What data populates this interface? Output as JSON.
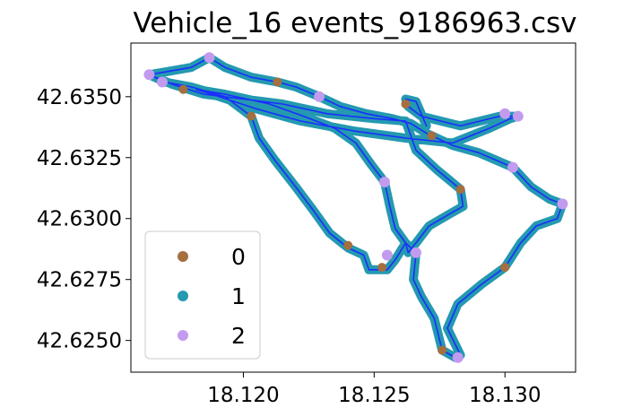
{
  "chart_data": {
    "type": "scatter",
    "title": "Vehicle_16 events_9186963.csv",
    "xlabel": "",
    "ylabel": "",
    "xlim": [
      18.1157,
      18.1327
    ],
    "ylim": [
      42.6237,
      42.6372
    ],
    "x_ticks": [
      18.12,
      18.125,
      18.13
    ],
    "x_tick_labels": [
      "18.120",
      "18.125",
      "18.130"
    ],
    "y_ticks": [
      42.625,
      42.6275,
      42.63,
      42.6325,
      42.635
    ],
    "y_tick_labels": [
      "42.6250",
      "42.6275",
      "42.6300",
      "42.6325",
      "42.6350"
    ],
    "grid": false,
    "legend_position": "lower-left",
    "series": [
      {
        "name": "0",
        "color": "#a56f3f"
      },
      {
        "name": "1",
        "color": "#2499b0"
      },
      {
        "name": "2",
        "color": "#c29bef"
      }
    ],
    "route_color": "#1a2eff",
    "track": [
      [
        18.1164,
        42.6359
      ],
      [
        18.118,
        42.6362
      ],
      [
        18.1187,
        42.6366
      ],
      [
        18.1193,
        42.6362
      ],
      [
        18.1203,
        42.6358
      ],
      [
        18.1213,
        42.6356
      ],
      [
        18.122,
        42.6354
      ],
      [
        18.1229,
        42.635
      ],
      [
        18.1237,
        42.6346
      ],
      [
        18.1247,
        42.6343
      ],
      [
        18.1257,
        42.6341
      ],
      [
        18.1264,
        42.6339
      ],
      [
        18.127,
        42.6335
      ],
      [
        18.128,
        42.633
      ],
      [
        18.129,
        42.6327
      ],
      [
        18.1303,
        42.6321
      ],
      [
        18.131,
        42.6313
      ],
      [
        18.1317,
        42.6308
      ],
      [
        18.1322,
        42.6306
      ],
      [
        18.132,
        42.63
      ],
      [
        18.1312,
        42.6297
      ],
      [
        18.1306,
        42.629
      ],
      [
        18.13,
        42.628
      ],
      [
        18.1291,
        42.6273
      ],
      [
        18.1282,
        42.6265
      ],
      [
        18.1278,
        42.6255
      ],
      [
        18.1283,
        42.6244
      ],
      [
        18.1281,
        42.6243
      ],
      [
        18.1276,
        42.6246
      ],
      [
        18.1273,
        42.6259
      ],
      [
        18.1268,
        42.6268
      ],
      [
        18.1265,
        42.6275
      ],
      [
        18.1266,
        42.6286
      ],
      [
        18.1262,
        42.629
      ],
      [
        18.1258,
        42.6283
      ],
      [
        18.1255,
        42.6279
      ],
      [
        18.1248,
        42.6279
      ],
      [
        18.1246,
        42.6285
      ],
      [
        18.124,
        42.6288
      ],
      [
        18.1233,
        42.6294
      ],
      [
        18.1227,
        42.6303
      ],
      [
        18.122,
        42.6313
      ],
      [
        18.1212,
        42.6324
      ],
      [
        18.1206,
        42.6333
      ],
      [
        18.1203,
        42.6342
      ],
      [
        18.1193,
        42.635
      ],
      [
        18.118,
        42.6354
      ],
      [
        18.117,
        42.6356
      ],
      [
        18.1164,
        42.6359
      ],
      [
        18.1173,
        42.6355
      ],
      [
        18.1185,
        42.6351
      ],
      [
        18.12,
        42.6349
      ],
      [
        18.1215,
        42.6347
      ],
      [
        18.1232,
        42.6343
      ],
      [
        18.125,
        42.6341
      ],
      [
        18.1262,
        42.634
      ],
      [
        18.1266,
        42.6328
      ],
      [
        18.1274,
        42.632
      ],
      [
        18.1283,
        42.6312
      ],
      [
        18.1284,
        42.6305
      ],
      [
        18.1279,
        42.6302
      ],
      [
        18.1271,
        42.6297
      ],
      [
        18.1266,
        42.629
      ],
      [
        18.1263,
        42.6286
      ],
      [
        18.1262,
        42.629
      ],
      [
        18.1258,
        42.6296
      ],
      [
        18.1256,
        42.6305
      ],
      [
        18.1254,
        42.6315
      ],
      [
        18.1249,
        42.6322
      ],
      [
        18.1243,
        42.6331
      ],
      [
        18.1235,
        42.6337
      ],
      [
        18.1223,
        42.6342
      ],
      [
        18.121,
        42.6347
      ],
      [
        18.1193,
        42.6351
      ],
      [
        18.1182,
        42.6353
      ],
      [
        18.1188,
        42.6351
      ],
      [
        18.1205,
        42.6345
      ],
      [
        18.1222,
        42.634
      ],
      [
        18.1242,
        42.6336
      ],
      [
        18.1262,
        42.6333
      ],
      [
        18.128,
        42.6331
      ],
      [
        18.1294,
        42.6337
      ],
      [
        18.1302,
        42.6341
      ],
      [
        18.1305,
        42.6342
      ],
      [
        18.1298,
        42.6342
      ],
      [
        18.1283,
        42.6338
      ],
      [
        18.1268,
        42.6342
      ],
      [
        18.1263,
        42.6346
      ],
      [
        18.1262,
        42.6349
      ],
      [
        18.1266,
        42.6348
      ],
      [
        18.127,
        42.6338
      ]
    ],
    "events": [
      {
        "x": 18.1164,
        "y": 42.6359,
        "cls": 2
      },
      {
        "x": 18.1187,
        "y": 42.6366,
        "cls": 2
      },
      {
        "x": 18.1229,
        "y": 42.635,
        "cls": 2
      },
      {
        "x": 18.1303,
        "y": 42.6321,
        "cls": 2
      },
      {
        "x": 18.1322,
        "y": 42.6306,
        "cls": 2
      },
      {
        "x": 18.1282,
        "y": 42.6243,
        "cls": 2
      },
      {
        "x": 18.1254,
        "y": 42.6315,
        "cls": 2
      },
      {
        "x": 18.1266,
        "y": 42.6286,
        "cls": 2
      },
      {
        "x": 18.1255,
        "y": 42.6285,
        "cls": 2
      },
      {
        "x": 18.1305,
        "y": 42.6342,
        "cls": 2
      },
      {
        "x": 18.13,
        "y": 42.6343,
        "cls": 2
      },
      {
        "x": 18.1169,
        "y": 42.6356,
        "cls": 2
      },
      {
        "x": 18.1203,
        "y": 42.6342,
        "cls": 0
      },
      {
        "x": 18.1213,
        "y": 42.6356,
        "cls": 0
      },
      {
        "x": 18.1272,
        "y": 42.6334,
        "cls": 0
      },
      {
        "x": 18.1276,
        "y": 42.6246,
        "cls": 0
      },
      {
        "x": 18.1253,
        "y": 42.628,
        "cls": 0
      },
      {
        "x": 18.1283,
        "y": 42.6312,
        "cls": 0
      },
      {
        "x": 18.124,
        "y": 42.6289,
        "cls": 0
      },
      {
        "x": 18.13,
        "y": 42.628,
        "cls": 0
      },
      {
        "x": 18.1177,
        "y": 42.6353,
        "cls": 0
      },
      {
        "x": 18.1262,
        "y": 42.6347,
        "cls": 0
      }
    ]
  }
}
